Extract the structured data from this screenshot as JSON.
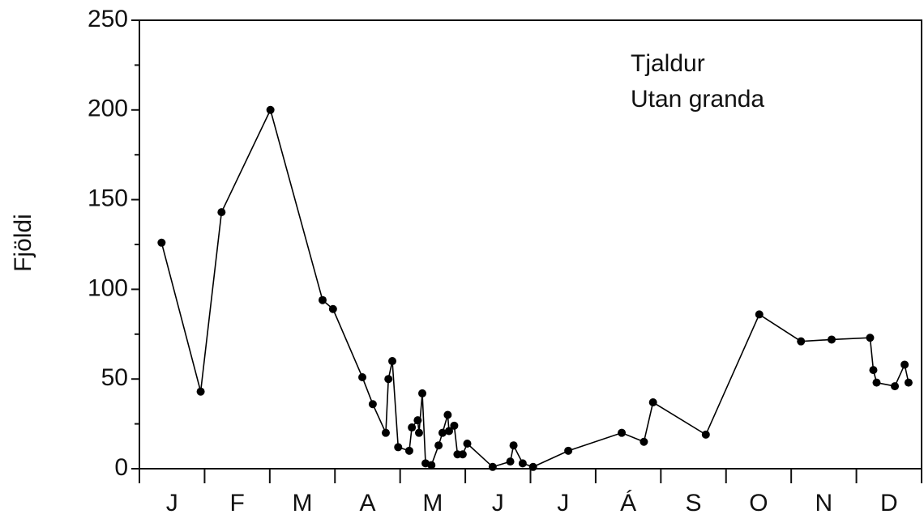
{
  "chart_data": {
    "type": "line",
    "ylabel": "Fjöldi",
    "annotations": [
      "Tjaldur",
      "Utan granda"
    ],
    "x": [
      0.34,
      0.94,
      1.26,
      2.01,
      2.81,
      2.97,
      3.42,
      3.58,
      3.78,
      3.82,
      3.88,
      3.97,
      4.14,
      4.18,
      4.27,
      4.29,
      4.34,
      4.39,
      4.48,
      4.59,
      4.65,
      4.73,
      4.75,
      4.83,
      4.88,
      4.96,
      5.03,
      5.42,
      5.69,
      5.74,
      5.88,
      6.04,
      6.58,
      7.4,
      7.74,
      7.88,
      8.69,
      9.51,
      10.15,
      10.62,
      11.21,
      11.26,
      11.31,
      11.59,
      11.74,
      11.8
    ],
    "values": [
      126,
      43,
      143,
      200,
      94,
      89,
      51,
      36,
      20,
      50,
      60,
      12,
      10,
      23,
      27,
      20,
      42,
      3,
      2,
      13,
      20,
      30,
      21,
      24,
      8,
      8,
      14,
      1,
      4,
      13,
      3,
      1,
      10,
      20,
      15,
      37,
      19,
      86,
      71,
      72,
      73,
      55,
      48,
      46,
      58,
      48
    ],
    "color": "#000000",
    "xlim": [
      0,
      12
    ],
    "xticks": [
      {
        "value": 0.5,
        "label": "J"
      },
      {
        "value": 1.5,
        "label": "F"
      },
      {
        "value": 2.5,
        "label": "M"
      },
      {
        "value": 3.5,
        "label": "A"
      },
      {
        "value": 4.5,
        "label": "M"
      },
      {
        "value": 5.5,
        "label": "J"
      },
      {
        "value": 6.5,
        "label": "J"
      },
      {
        "value": 7.5,
        "label": "Á"
      },
      {
        "value": 8.5,
        "label": "S"
      },
      {
        "value": 9.5,
        "label": "O"
      },
      {
        "value": 10.5,
        "label": "N"
      },
      {
        "value": 11.5,
        "label": "D"
      }
    ],
    "ylim": [
      0,
      250
    ],
    "yticks": [
      0,
      50,
      100,
      150,
      200,
      250
    ]
  }
}
